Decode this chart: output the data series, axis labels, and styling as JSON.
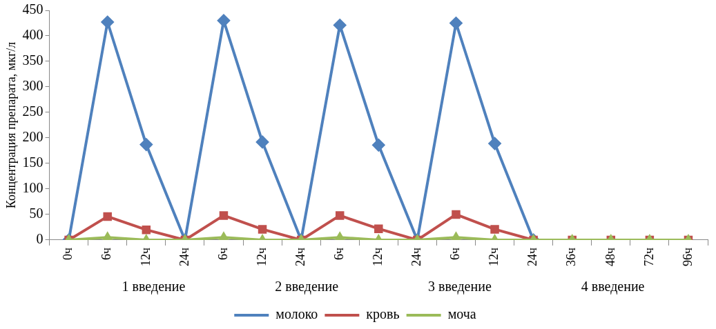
{
  "chart_data": {
    "type": "line",
    "ylabel": "Концентрация препарата, мкг/л",
    "categories": [
      "0ч",
      "6ч",
      "12ч",
      "24ч",
      "6ч",
      "12ч",
      "24ч",
      "6ч",
      "12ч",
      "24ч",
      "6ч",
      "12ч",
      "24ч",
      "36ч",
      "48ч",
      "72ч",
      "96ч"
    ],
    "series": [
      {
        "name": "молоко",
        "color": "#4f81bd",
        "marker": "diamond",
        "values": [
          0,
          427,
          187,
          0,
          430,
          192,
          0,
          421,
          186,
          0,
          425,
          189,
          0,
          null,
          null,
          null,
          null
        ]
      },
      {
        "name": "кровь",
        "color": "#c0504d",
        "marker": "square",
        "values": [
          0,
          46,
          20,
          0,
          48,
          21,
          0,
          48,
          22,
          0,
          50,
          21,
          0,
          0,
          0,
          0,
          0
        ]
      },
      {
        "name": "моча",
        "color": "#9bbb59",
        "marker": "triangle",
        "values": [
          0,
          5,
          0,
          0,
          5,
          0,
          0,
          5,
          0,
          0,
          5,
          0,
          0,
          0,
          0,
          0,
          0
        ]
      }
    ],
    "ylim": [
      0,
      450
    ],
    "yticks": [
      0,
      50,
      100,
      150,
      200,
      250,
      300,
      350,
      400,
      450
    ],
    "grid": false,
    "legend": "bottom",
    "line_style": "solid",
    "annotations": [
      "1 введение",
      "2 введение",
      "3 введение",
      "4 введение"
    ]
  }
}
